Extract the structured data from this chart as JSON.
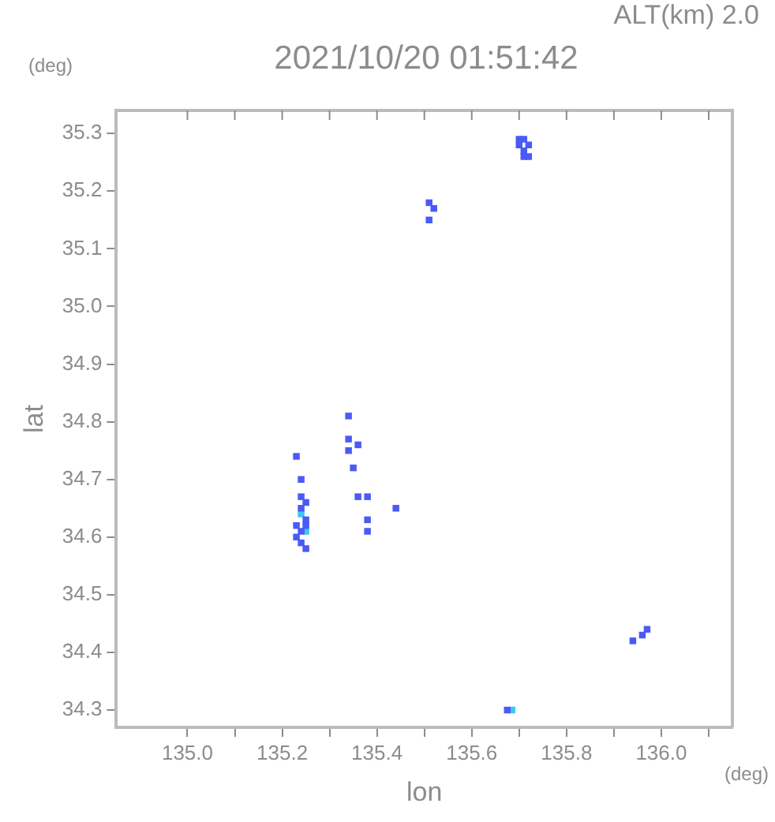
{
  "chart_data": {
    "type": "scatter",
    "title": "2021/10/20 01:51:42",
    "subtitle": "ALT(km) 2.0",
    "xlabel": "lon",
    "ylabel": "lat",
    "annotations": [
      "(deg)",
      "(deg)"
    ],
    "xlim": [
      134.85,
      136.15
    ],
    "ylim": [
      34.27,
      35.34
    ],
    "xticks": [
      {
        "value": 135,
        "label": "135.0"
      },
      {
        "value": 135.1,
        "label": null
      },
      135.2,
      {
        "value": 135.3,
        "label": null
      },
      135.4,
      {
        "value": 135.5,
        "label": null
      },
      135.6,
      {
        "value": 135.7,
        "label": null
      },
      135.8,
      {
        "value": 135.9,
        "label": null
      },
      {
        "value": 136,
        "label": "136.0"
      },
      {
        "value": 136.1,
        "label": null
      }
    ],
    "yticks": [
      34.3,
      34.4,
      34.5,
      34.6,
      34.7,
      34.8,
      34.9,
      {
        "value": 35,
        "label": "35.0"
      },
      35.1,
      35.2,
      35.3
    ],
    "grid": false,
    "legend": false,
    "marker": "square",
    "series": [
      {
        "color": "#4a5af5",
        "x": [
          135.7,
          135.71,
          135.72,
          135.7,
          135.71,
          135.72,
          135.71,
          135.51,
          135.52,
          135.51,
          135.24,
          135.25,
          135.24,
          135.23,
          135.25,
          135.24,
          135.25,
          135.23,
          135.24,
          135.34,
          135.34,
          135.36,
          135.34,
          135.35,
          135.23,
          135.24,
          135.36,
          135.38,
          135.44,
          135.38,
          135.38,
          135.25,
          135.97,
          135.96,
          135.94,
          135.675
        ],
        "values": [
          35.29,
          35.29,
          35.28,
          35.28,
          35.27,
          35.26,
          35.26,
          35.18,
          35.17,
          35.15,
          34.67,
          34.66,
          34.65,
          34.62,
          34.62,
          34.59,
          34.58,
          34.6,
          34.61,
          34.81,
          34.77,
          34.76,
          34.75,
          34.72,
          34.74,
          34.7,
          34.67,
          34.67,
          34.65,
          34.63,
          34.61,
          34.63,
          34.44,
          34.43,
          34.42,
          34.3
        ]
      },
      {
        "color": "#3cc8f0",
        "x": [
          135.24,
          135.25,
          135.685
        ],
        "values": [
          34.64,
          34.61,
          34.3
        ]
      }
    ]
  }
}
